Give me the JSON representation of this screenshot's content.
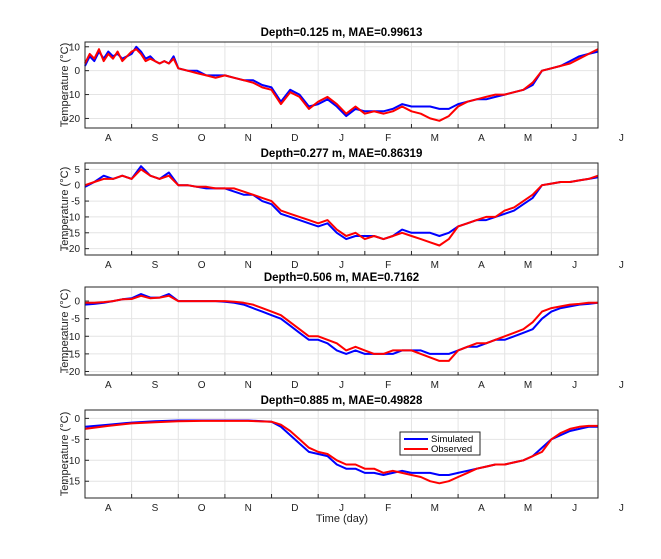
{
  "colors": {
    "simulated": "#0000ff",
    "observed": "#ff0000",
    "grid": "#e4e4e4",
    "axis": "#262626"
  },
  "xlabel": "Time (day)",
  "legend": {
    "placement": "inside-right",
    "entries": [
      "Simulated",
      "Observed"
    ]
  },
  "chart_data": [
    {
      "type": "line",
      "title": "Depth=0.125 m,   MAE=0.99613",
      "ylabel": "Temperature (°C)",
      "categories": [
        "A",
        "S",
        "O",
        "N",
        "D",
        "J",
        "F",
        "M",
        "A",
        "M",
        "J",
        "J"
      ],
      "ylim": [
        -24,
        12
      ],
      "yticks": [
        10,
        0,
        -10,
        -20
      ],
      "grid": true,
      "series": [
        {
          "name": "Simulated",
          "x": [
            0,
            0.1,
            0.2,
            0.3,
            0.4,
            0.5,
            0.6,
            0.7,
            0.8,
            0.9,
            1,
            1.1,
            1.2,
            1.3,
            1.4,
            1.5,
            1.6,
            1.7,
            1.8,
            1.9,
            2,
            2.2,
            2.4,
            2.6,
            2.8,
            3,
            3.2,
            3.4,
            3.6,
            3.8,
            4,
            4.2,
            4.4,
            4.6,
            4.8,
            5,
            5.2,
            5.4,
            5.6,
            5.8,
            6,
            6.2,
            6.4,
            6.6,
            6.8,
            7,
            7.2,
            7.4,
            7.6,
            7.8,
            8,
            8.2,
            8.4,
            8.6,
            8.8,
            9,
            9.2,
            9.4,
            9.6,
            9.8,
            10,
            10.2,
            10.4,
            10.6,
            10.8,
            11
          ],
          "y": [
            2,
            6,
            4,
            8,
            5,
            8,
            6,
            7,
            5,
            6,
            7,
            10,
            8,
            5,
            6,
            4,
            3,
            4,
            3,
            6,
            1,
            0,
            0,
            -2,
            -2,
            -2,
            -3,
            -4,
            -4,
            -6,
            -7,
            -13,
            -8,
            -10,
            -15,
            -14,
            -12,
            -15,
            -19,
            -16,
            -17,
            -17,
            -17,
            -16,
            -14,
            -15,
            -15,
            -15,
            -16,
            -16,
            -14,
            -13,
            -12,
            -12,
            -11,
            -10,
            -9,
            -8,
            -6,
            0,
            1,
            2,
            4,
            6,
            7,
            8
          ]
        },
        {
          "name": "Observed",
          "x": [
            0,
            0.1,
            0.2,
            0.3,
            0.4,
            0.5,
            0.6,
            0.7,
            0.8,
            0.9,
            1,
            1.1,
            1.2,
            1.3,
            1.4,
            1.5,
            1.6,
            1.7,
            1.8,
            1.9,
            2,
            2.2,
            2.4,
            2.6,
            2.8,
            3,
            3.2,
            3.4,
            3.6,
            3.8,
            4,
            4.2,
            4.4,
            4.6,
            4.8,
            5,
            5.2,
            5.4,
            5.6,
            5.8,
            6,
            6.2,
            6.4,
            6.6,
            6.8,
            7,
            7.2,
            7.4,
            7.6,
            7.8,
            8,
            8.2,
            8.4,
            8.6,
            8.8,
            9,
            9.2,
            9.4,
            9.6,
            9.8,
            10,
            10.2,
            10.4,
            10.6,
            10.8,
            11
          ],
          "y": [
            3,
            7,
            5,
            9,
            4,
            7,
            5,
            8,
            4,
            6,
            8,
            9,
            7,
            4,
            5,
            4,
            3,
            4,
            3,
            5,
            1,
            0,
            -1,
            -2,
            -3,
            -2,
            -3,
            -4,
            -5,
            -7,
            -8,
            -14,
            -9,
            -11,
            -16,
            -13,
            -11,
            -14,
            -18,
            -15,
            -18,
            -17,
            -18,
            -17,
            -15,
            -17,
            -18,
            -20,
            -21,
            -19,
            -15,
            -13,
            -12,
            -11,
            -10,
            -10,
            -9,
            -8,
            -5,
            0,
            1,
            2,
            3,
            5,
            7,
            9
          ]
        }
      ]
    },
    {
      "type": "line",
      "title": "Depth=0.277 m,   MAE=0.86319",
      "ylabel": "Temperature (°C)",
      "categories": [
        "A",
        "S",
        "O",
        "N",
        "D",
        "J",
        "F",
        "M",
        "A",
        "M",
        "J",
        "J"
      ],
      "ylim": [
        -22,
        7
      ],
      "yticks": [
        5,
        0,
        -5,
        -10,
        -15,
        -20
      ],
      "grid": true,
      "series": [
        {
          "name": "Simulated",
          "x": [
            0,
            0.2,
            0.4,
            0.6,
            0.8,
            1,
            1.2,
            1.4,
            1.6,
            1.8,
            2,
            2.2,
            2.4,
            2.6,
            2.8,
            3,
            3.2,
            3.4,
            3.6,
            3.8,
            4,
            4.2,
            4.4,
            4.6,
            4.8,
            5,
            5.2,
            5.4,
            5.6,
            5.8,
            6,
            6.2,
            6.4,
            6.6,
            6.8,
            7,
            7.2,
            7.4,
            7.6,
            7.8,
            8,
            8.2,
            8.4,
            8.6,
            8.8,
            9,
            9.2,
            9.4,
            9.6,
            9.8,
            10,
            10.2,
            10.4,
            10.6,
            10.8,
            11
          ],
          "y": [
            -0.5,
            1,
            3,
            2,
            3,
            2,
            6,
            3,
            2,
            4,
            0,
            0,
            -0.5,
            -1,
            -1,
            -1,
            -2,
            -3,
            -3,
            -5,
            -6,
            -9,
            -10,
            -11,
            -12,
            -13,
            -12,
            -15,
            -17,
            -16,
            -16,
            -16,
            -17,
            -16,
            -14,
            -15,
            -15,
            -15,
            -16,
            -15,
            -13,
            -12,
            -11,
            -11,
            -10,
            -9,
            -8,
            -6,
            -4,
            0,
            0.5,
            1,
            1,
            1.5,
            2,
            2.5
          ]
        },
        {
          "name": "Observed",
          "x": [
            0,
            0.2,
            0.4,
            0.6,
            0.8,
            1,
            1.2,
            1.4,
            1.6,
            1.8,
            2,
            2.2,
            2.4,
            2.6,
            2.8,
            3,
            3.2,
            3.4,
            3.6,
            3.8,
            4,
            4.2,
            4.4,
            4.6,
            4.8,
            5,
            5.2,
            5.4,
            5.6,
            5.8,
            6,
            6.2,
            6.4,
            6.6,
            6.8,
            7,
            7.2,
            7.4,
            7.6,
            7.8,
            8,
            8.2,
            8.4,
            8.6,
            8.8,
            9,
            9.2,
            9.4,
            9.6,
            9.8,
            10,
            10.2,
            10.4,
            10.6,
            10.8,
            11
          ],
          "y": [
            0,
            1,
            2,
            2,
            3,
            2,
            5,
            3,
            2,
            3,
            0,
            0,
            -0.5,
            -0.5,
            -1,
            -1,
            -1,
            -2,
            -3,
            -4,
            -5,
            -8,
            -9,
            -10,
            -11,
            -12,
            -11,
            -14,
            -16,
            -15,
            -17,
            -16,
            -17,
            -16,
            -15,
            -16,
            -17,
            -18,
            -19,
            -17,
            -13,
            -12,
            -11,
            -10,
            -10,
            -8,
            -7,
            -5,
            -3,
            0,
            0.5,
            1,
            1,
            1.5,
            2,
            3
          ]
        }
      ]
    },
    {
      "type": "line",
      "title": "Depth=0.506 m,   MAE=0.7162",
      "ylabel": "Temperature (°C)",
      "categories": [
        "A",
        "S",
        "O",
        "N",
        "D",
        "J",
        "F",
        "M",
        "A",
        "M",
        "J",
        "J"
      ],
      "ylim": [
        -21,
        4
      ],
      "yticks": [
        0,
        -5,
        -10,
        -15,
        -20
      ],
      "grid": true,
      "series": [
        {
          "name": "Simulated",
          "x": [
            0,
            0.2,
            0.4,
            0.6,
            0.8,
            1,
            1.2,
            1.4,
            1.6,
            1.8,
            2,
            2.2,
            2.4,
            2.6,
            2.8,
            3,
            3.2,
            3.4,
            3.6,
            3.8,
            4,
            4.2,
            4.4,
            4.6,
            4.8,
            5,
            5.2,
            5.4,
            5.6,
            5.8,
            6,
            6.2,
            6.4,
            6.6,
            6.8,
            7,
            7.2,
            7.4,
            7.6,
            7.8,
            8,
            8.2,
            8.4,
            8.6,
            8.8,
            9,
            9.2,
            9.4,
            9.6,
            9.8,
            10,
            10.2,
            10.4,
            10.6,
            10.8,
            11
          ],
          "y": [
            -1,
            -0.8,
            -0.5,
            0,
            0.5,
            0.8,
            2,
            1,
            1,
            2,
            0,
            0,
            0,
            0,
            0,
            -0.2,
            -0.5,
            -1,
            -2,
            -3,
            -4,
            -5,
            -7,
            -9,
            -11,
            -11,
            -12,
            -14,
            -15,
            -14,
            -15,
            -15,
            -15,
            -15,
            -14,
            -14,
            -14,
            -15,
            -15,
            -15,
            -14,
            -13,
            -13,
            -12,
            -11,
            -11,
            -10,
            -9,
            -8,
            -5,
            -3,
            -2,
            -1.5,
            -1,
            -0.8,
            -0.5
          ]
        },
        {
          "name": "Observed",
          "x": [
            0,
            0.2,
            0.4,
            0.6,
            0.8,
            1,
            1.2,
            1.4,
            1.6,
            1.8,
            2,
            2.2,
            2.4,
            2.6,
            2.8,
            3,
            3.2,
            3.4,
            3.6,
            3.8,
            4,
            4.2,
            4.4,
            4.6,
            4.8,
            5,
            5.2,
            5.4,
            5.6,
            5.8,
            6,
            6.2,
            6.4,
            6.6,
            6.8,
            7,
            7.2,
            7.4,
            7.6,
            7.8,
            8,
            8.2,
            8.4,
            8.6,
            8.8,
            9,
            9.2,
            9.4,
            9.6,
            9.8,
            10,
            10.2,
            10.4,
            10.6,
            10.8,
            11
          ],
          "y": [
            -0.5,
            -0.5,
            -0.3,
            0,
            0.5,
            0.6,
            1.5,
            0.8,
            1,
            1.5,
            0,
            0,
            0,
            0,
            0,
            0,
            -0.2,
            -0.5,
            -1,
            -2,
            -3,
            -4,
            -6,
            -8,
            -10,
            -10,
            -11,
            -12,
            -14,
            -13,
            -14,
            -15,
            -15,
            -14,
            -14,
            -14,
            -15,
            -16,
            -17,
            -17,
            -14,
            -13,
            -12,
            -12,
            -11,
            -10,
            -9,
            -8,
            -6,
            -3,
            -2,
            -1.5,
            -1,
            -0.8,
            -0.5,
            -0.5
          ]
        }
      ]
    },
    {
      "type": "line",
      "title": "Depth=0.885 m,   MAE=0.49828",
      "ylabel": "Temperature (°C)",
      "categories": [
        "A",
        "S",
        "O",
        "N",
        "D",
        "J",
        "F",
        "M",
        "A",
        "M",
        "J",
        "J"
      ],
      "ylim": [
        -19,
        2
      ],
      "yticks": [
        0,
        -5,
        -10,
        -15
      ],
      "grid": true,
      "series": [
        {
          "name": "Simulated",
          "x": [
            0,
            0.5,
            1,
            1.5,
            2,
            2.5,
            3,
            3.5,
            4,
            4.2,
            4.4,
            4.6,
            4.8,
            5,
            5.2,
            5.4,
            5.6,
            5.8,
            6,
            6.2,
            6.4,
            6.6,
            6.8,
            7,
            7.2,
            7.4,
            7.6,
            7.8,
            8,
            8.2,
            8.4,
            8.6,
            8.8,
            9,
            9.2,
            9.4,
            9.6,
            9.8,
            10,
            10.2,
            10.4,
            10.6,
            10.8,
            11
          ],
          "y": [
            -2,
            -1.5,
            -1,
            -0.7,
            -0.5,
            -0.5,
            -0.5,
            -0.5,
            -0.8,
            -2,
            -4,
            -6,
            -8,
            -8.5,
            -9,
            -11,
            -12,
            -12,
            -13,
            -13,
            -13.5,
            -13,
            -12.5,
            -13,
            -13,
            -13,
            -13.5,
            -13.5,
            -13,
            -12.5,
            -12,
            -11.5,
            -11,
            -11,
            -10.5,
            -10,
            -9,
            -7,
            -5,
            -4,
            -3,
            -2.5,
            -2,
            -2
          ]
        },
        {
          "name": "Observed",
          "x": [
            0,
            0.5,
            1,
            1.5,
            2,
            2.5,
            3,
            3.5,
            4,
            4.2,
            4.4,
            4.6,
            4.8,
            5,
            5.2,
            5.4,
            5.6,
            5.8,
            6,
            6.2,
            6.4,
            6.6,
            6.8,
            7,
            7.2,
            7.4,
            7.6,
            7.8,
            8,
            8.2,
            8.4,
            8.6,
            8.8,
            9,
            9.2,
            9.4,
            9.6,
            9.8,
            10,
            10.2,
            10.4,
            10.6,
            10.8,
            11
          ],
          "y": [
            -2.5,
            -1.8,
            -1.2,
            -0.9,
            -0.7,
            -0.6,
            -0.6,
            -0.6,
            -0.8,
            -1.5,
            -3,
            -5,
            -7,
            -8,
            -8.5,
            -10,
            -11,
            -11,
            -12,
            -12,
            -13,
            -12.5,
            -13,
            -13.5,
            -14,
            -15,
            -15.5,
            -15,
            -14,
            -13,
            -12,
            -11.5,
            -11,
            -11,
            -10.5,
            -10,
            -9,
            -8,
            -5,
            -3.5,
            -2.5,
            -2,
            -1.8,
            -1.8
          ]
        }
      ]
    }
  ]
}
